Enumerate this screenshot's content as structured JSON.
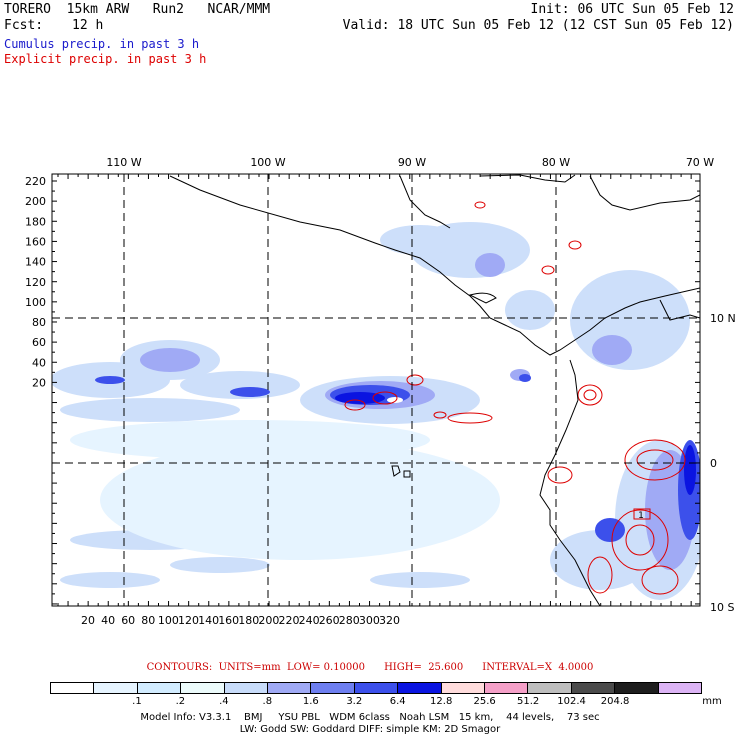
{
  "header": {
    "model": "TORERO  15km ARW   Run2   NCAR/MMM",
    "init": "Init: 06 UTC Sun 05 Feb 12",
    "fcst_label": "Fcst:",
    "fcst_value": "12 h",
    "valid": "Valid: 18 UTC Sun 05 Feb 12 (12 CST Sun 05 Feb 12)",
    "legend_cumulus": "Cumulus precip. in past 3 h",
    "legend_explicit": "Explicit precip. in past 3 h",
    "cumulus_color": "#1a1acc",
    "explicit_color": "#dd0000"
  },
  "map": {
    "lon_labels": [
      "110 W",
      "100 W",
      "90 W",
      "80 W",
      "70 W"
    ],
    "lat_labels": [
      "10 N",
      "0",
      "10 S"
    ],
    "y_ticks": [
      "220",
      "200",
      "180",
      "160",
      "140",
      "120",
      "100",
      "80",
      "60",
      "40",
      "20"
    ],
    "x_ticks": [
      "20",
      "40",
      "60",
      "80",
      "100",
      "120",
      "140",
      "160",
      "180",
      "200",
      "220",
      "240",
      "260",
      "280",
      "300",
      "320"
    ],
    "box_label": "1"
  },
  "contours_line": "CONTOURS:  UNITS=mm  LOW= 0.10000      HIGH=  25.600      INTERVAL=X  4.0000",
  "colorbar": {
    "colors": [
      "#ffffff",
      "#e6f4ff",
      "#d2ecff",
      "#ecfbfb",
      "#c8dcfa",
      "#a0aaf5",
      "#6e7ff0",
      "#3c50eb",
      "#0a14e1",
      "#ffdcdc",
      "#f5a0c8",
      "#bebebe",
      "#4b4b4b",
      "#1e1e1e",
      "#dcb4f5"
    ],
    "labels": [
      ".1",
      ".2",
      ".4",
      ".8",
      "1.6",
      "3.2",
      "6.4",
      "12.8",
      "25.6",
      "51.2",
      "102.4",
      "204.8"
    ],
    "unit": "mm"
  },
  "footer": {
    "line1": "Model Info: V3.3.1    BMJ     YSU PBL   WDM 6class   Noah LSM   15 km,    44 levels,    73 sec",
    "line2": "LW: Godd SW: Goddard DIFF: simple KM: 2D Smagor"
  }
}
